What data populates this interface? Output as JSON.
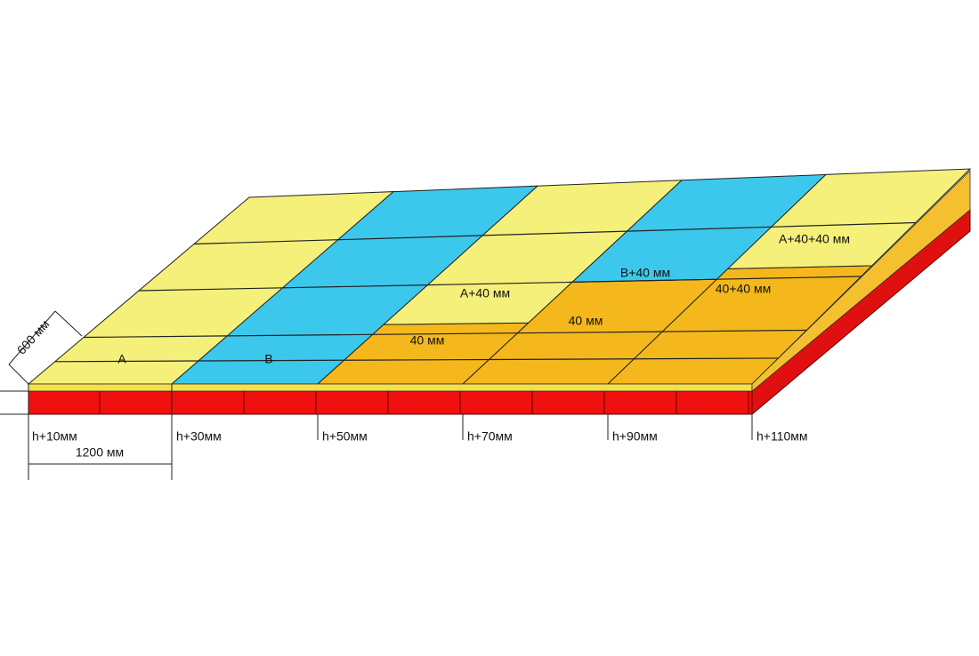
{
  "dimensions": {
    "width": "600 мм",
    "length": "1200 мм"
  },
  "panels": [
    "A",
    "B",
    "A+40 мм",
    "B+40 мм",
    "A+40+40 мм",
    "40 мм",
    "40 мм",
    "40+40 мм"
  ],
  "heights": [
    "h+10мм",
    "h+30мм",
    "h+50мм",
    "h+70мм",
    "h+90мм",
    "h+110мм"
  ]
}
